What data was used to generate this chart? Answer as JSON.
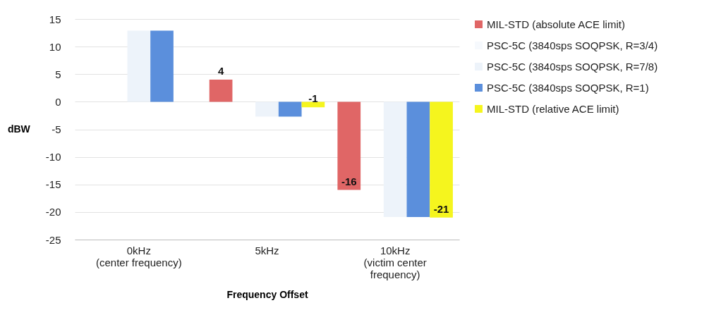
{
  "chart_data": {
    "type": "bar",
    "xlabel": "Frequency Offset",
    "ylabel": "dBW",
    "categories": [
      "0kHz\n(center frequency)",
      "5kHz",
      "10kHz\n(victim center\nfrequency)"
    ],
    "series": [
      {
        "name": "MIL-STD (absolute ACE limit)",
        "color": "#e06666",
        "values": [
          null,
          4,
          -16
        ],
        "value_labels": [
          null,
          "4",
          "-16"
        ]
      },
      {
        "name": "PSC-5C (3840sps SOQPSK, R=3/4)",
        "color": "#f6f9fd",
        "values": [
          null,
          null,
          null
        ]
      },
      {
        "name": "PSC-5C (3840sps SOQPSK, R=7/8)",
        "color": "#edf3fa",
        "values": [
          12.9,
          -2.7,
          -20.9
        ]
      },
      {
        "name": "PSC-5C (3840sps SOQPSK, R=1)",
        "color": "#5b8fdc",
        "values": [
          12.9,
          -2.7,
          -20.9
        ]
      },
      {
        "name": "MIL-STD (relative ACE limit)",
        "color": "#f5f51e",
        "values": [
          null,
          -1,
          -21
        ],
        "value_labels": [
          null,
          "-1",
          "-21"
        ]
      }
    ],
    "ylim": [
      -25,
      15
    ],
    "yticks": [
      -25,
      -20,
      -15,
      -10,
      -5,
      0,
      5,
      10,
      15
    ],
    "grid": "y",
    "legend": "right"
  }
}
